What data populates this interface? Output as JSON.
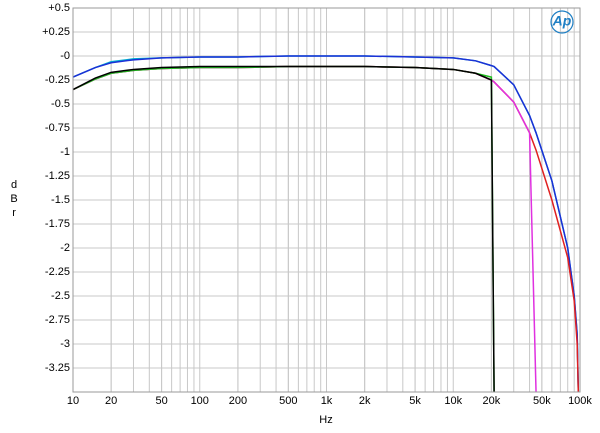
{
  "chart_data": {
    "type": "line",
    "x_label": "Hz",
    "y_label": "dBr",
    "logo": "Ap",
    "xscale": "log",
    "grid": true,
    "xlim": [
      10,
      100000
    ],
    "ylim": [
      -3.5,
      0.5
    ],
    "xticks": [
      10,
      20,
      50,
      100,
      200,
      500,
      {
        "value": 1000,
        "label": "1k"
      },
      {
        "value": 2000,
        "label": "2k"
      },
      {
        "value": 5000,
        "label": "5k"
      },
      {
        "value": 10000,
        "label": "10k"
      },
      {
        "value": 20000,
        "label": "20k"
      },
      {
        "value": 50000,
        "label": "50k"
      },
      {
        "value": 100000,
        "label": "100k"
      }
    ],
    "yticks": [
      {
        "value": 0.5,
        "label": "+0.5"
      },
      {
        "value": 0.25,
        "label": "+0.25"
      },
      {
        "value": 0,
        "label": "-0"
      },
      -0.25,
      -0.5,
      -0.75,
      -1,
      -1.25,
      -1.5,
      -1.75,
      -2,
      -2.25,
      -2.5,
      -2.75,
      -3,
      -3.25
    ],
    "x": [
      10,
      15,
      20,
      30,
      50,
      100,
      200,
      500,
      1000,
      2000,
      5000,
      10000,
      15000,
      20000,
      21000,
      30000,
      40000,
      45000,
      60000,
      80000,
      90000,
      95000,
      97000
    ],
    "series": [
      {
        "color": "#00b0d0",
        "values": [
          -0.22,
          -0.12,
          -0.06,
          -0.03,
          -0.02,
          -0.01,
          -0.01,
          0,
          0,
          0,
          -0.01,
          -0.02,
          -0.05,
          -0.1,
          -0.11,
          -0.3,
          -0.62,
          -0.8,
          -1.3,
          -2.0,
          -2.5,
          -2.9,
          -3.5
        ]
      },
      {
        "color": "#1c2fd6",
        "values": [
          -0.22,
          -0.12,
          -0.07,
          -0.04,
          -0.02,
          -0.01,
          -0.01,
          0,
          0,
          0,
          -0.01,
          -0.02,
          -0.05,
          -0.1,
          -0.11,
          -0.3,
          -0.62,
          -0.8,
          -1.3,
          -2.0,
          -2.5,
          -2.9,
          -3.5
        ]
      },
      {
        "color": "#e02020",
        "values": [
          -0.35,
          -0.24,
          -0.18,
          -0.15,
          -0.13,
          -0.12,
          -0.12,
          -0.11,
          -0.11,
          -0.11,
          -0.12,
          -0.14,
          -0.18,
          -0.25,
          -0.27,
          -0.48,
          -0.8,
          -0.98,
          -1.5,
          -2.1,
          -2.55,
          -3.0,
          -3.5
        ]
      },
      {
        "color": "#e030e0",
        "values": [
          -0.35,
          -0.24,
          -0.18,
          -0.15,
          -0.13,
          -0.12,
          -0.12,
          -0.11,
          -0.11,
          -0.11,
          -0.12,
          -0.14,
          -0.18,
          -0.25,
          -0.27,
          -0.48,
          -0.8,
          -3.5,
          null,
          null,
          null,
          null,
          null
        ]
      },
      {
        "color": "#20c020",
        "values": [
          -0.35,
          -0.24,
          -0.18,
          -0.15,
          -0.13,
          -0.12,
          -0.12,
          -0.11,
          -0.11,
          -0.11,
          -0.12,
          -0.14,
          -0.18,
          -0.22,
          -3.5,
          null,
          null,
          null,
          null,
          null,
          null,
          null,
          null
        ]
      },
      {
        "color": "#000000",
        "values": [
          -0.35,
          -0.23,
          -0.17,
          -0.14,
          -0.12,
          -0.11,
          -0.11,
          -0.11,
          -0.11,
          -0.11,
          -0.12,
          -0.14,
          -0.18,
          -0.25,
          -3.5,
          null,
          null,
          null,
          null,
          null,
          null,
          null,
          null
        ]
      }
    ]
  }
}
